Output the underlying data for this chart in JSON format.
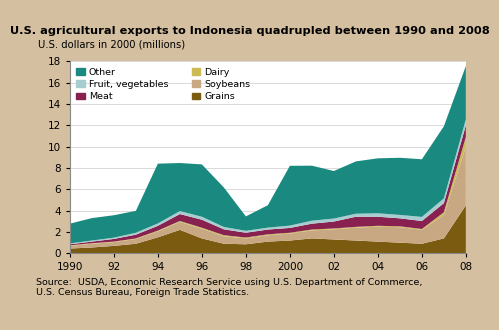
{
  "title": "U.S. agricultural exports to Indonesia quadrupled between 1990 and 2008",
  "ylabel": "U.S. dollars in 2000 (millions)",
  "source": "Source:  USDA, Economic Research Service using U.S. Department of Commerce,\nU.S. Census Bureau, Foreign Trade Statistics.",
  "years": [
    1990,
    1991,
    1992,
    1993,
    1994,
    1995,
    1996,
    1997,
    1998,
    1999,
    2000,
    2001,
    2002,
    2003,
    2004,
    2005,
    2006,
    2007,
    2008
  ],
  "series": {
    "Grains": [
      0.45,
      0.55,
      0.7,
      0.9,
      1.5,
      2.2,
      1.4,
      0.9,
      0.85,
      1.1,
      1.2,
      1.4,
      1.3,
      1.2,
      1.1,
      1.0,
      0.9,
      1.4,
      4.5
    ],
    "Soybeans": [
      0.25,
      0.35,
      0.35,
      0.45,
      0.55,
      0.75,
      0.9,
      0.7,
      0.55,
      0.6,
      0.65,
      0.75,
      0.95,
      1.2,
      1.4,
      1.45,
      1.3,
      2.2,
      5.5
    ],
    "Dairy": [
      0.05,
      0.05,
      0.05,
      0.05,
      0.08,
      0.08,
      0.1,
      0.1,
      0.08,
      0.08,
      0.08,
      0.08,
      0.08,
      0.08,
      0.08,
      0.08,
      0.08,
      0.25,
      0.9
    ],
    "Meat": [
      0.1,
      0.15,
      0.25,
      0.35,
      0.45,
      0.65,
      0.75,
      0.55,
      0.45,
      0.45,
      0.45,
      0.55,
      0.65,
      0.95,
      0.85,
      0.75,
      0.75,
      0.85,
      1.1
    ],
    "Fruit, vegetables": [
      0.08,
      0.1,
      0.12,
      0.18,
      0.22,
      0.28,
      0.28,
      0.22,
      0.18,
      0.18,
      0.22,
      0.28,
      0.28,
      0.28,
      0.32,
      0.32,
      0.38,
      0.45,
      0.55
    ],
    "Other": [
      1.85,
      2.1,
      2.1,
      2.05,
      5.6,
      4.5,
      4.9,
      3.7,
      1.35,
      2.1,
      5.6,
      5.15,
      4.45,
      4.9,
      5.15,
      5.35,
      5.4,
      6.75,
      5.0
    ]
  },
  "colors": {
    "Grains": "#7B5B10",
    "Soybeans": "#C8A882",
    "Dairy": "#CCBB55",
    "Meat": "#882050",
    "Fruit, vegetables": "#A8CDD0",
    "Other": "#1A8A80"
  },
  "ylim": [
    0,
    18
  ],
  "yticks": [
    0,
    2,
    4,
    6,
    8,
    10,
    12,
    14,
    16,
    18
  ],
  "xticks": [
    1990,
    1992,
    1994,
    1996,
    1998,
    2000,
    2002,
    2004,
    2006,
    2008
  ],
  "xticklabels": [
    "1990",
    "92",
    "94",
    "96",
    "98",
    "2000",
    "02",
    "04",
    "06",
    "08"
  ],
  "title_bg_color": "#C8B090",
  "source_bg_color": "#D4BFA0",
  "plot_bg_color": "#FFFFFF",
  "legend_col1": [
    "Other",
    "Fruit, vegetables",
    "Meat"
  ],
  "legend_col2": [
    "Dairy",
    "Soybeans",
    "Grains"
  ]
}
